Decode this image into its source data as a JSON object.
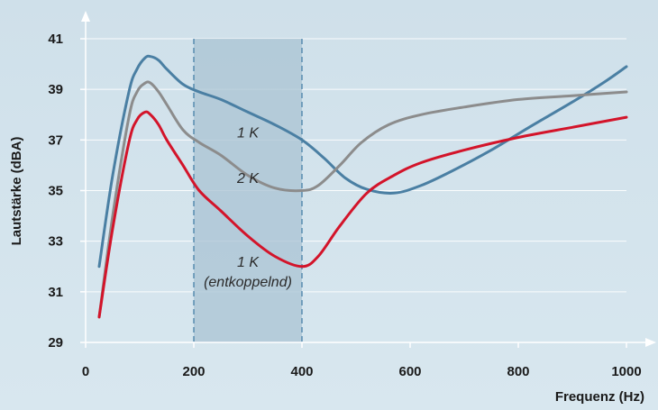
{
  "chart_data": {
    "type": "line",
    "xlabel": "Frequenz (Hz)",
    "ylabel": "Lautstärke (dBA)",
    "xlim": [
      0,
      1000
    ],
    "ylim": [
      29,
      41
    ],
    "xticks": [
      "0",
      "200",
      "400",
      "600",
      "800",
      "1000"
    ],
    "yticks": [
      "29",
      "31",
      "33",
      "35",
      "37",
      "39",
      "41"
    ],
    "grid": true,
    "legend": "none",
    "band": {
      "x0": 200,
      "x1": 400,
      "color": "#a9c3d3"
    },
    "annotations": [
      {
        "text": "1 K",
        "x": 300,
        "y": 37.1
      },
      {
        "text": "2 K",
        "x": 300,
        "y": 35.3
      },
      {
        "text": "1 K",
        "x": 300,
        "y": 32.0
      },
      {
        "text": "(entkoppelnd)",
        "x": 300,
        "y": 31.2
      }
    ],
    "series": [
      {
        "color": "#4a7fa3",
        "x": [
          25,
          50,
          80,
          95,
          110,
          120,
          135,
          150,
          180,
          210,
          250,
          300,
          350,
          400,
          440,
          480,
          520,
          570,
          620,
          680,
          750,
          820,
          900,
          960,
          1000
        ],
        "y": [
          32.0,
          35.6,
          38.9,
          39.8,
          40.25,
          40.3,
          40.15,
          39.8,
          39.2,
          38.9,
          38.6,
          38.1,
          37.6,
          37.0,
          36.3,
          35.5,
          35.05,
          34.9,
          35.2,
          35.8,
          36.6,
          37.5,
          38.5,
          39.3,
          39.9
        ]
      },
      {
        "color": "#8c8c8c",
        "x": [
          25,
          50,
          80,
          95,
          110,
          120,
          135,
          150,
          180,
          210,
          250,
          300,
          350,
          400,
          430,
          470,
          510,
          560,
          620,
          700,
          800,
          900,
          1000
        ],
        "y": [
          30.0,
          34.0,
          37.9,
          38.9,
          39.25,
          39.25,
          38.9,
          38.4,
          37.4,
          36.9,
          36.4,
          35.6,
          35.1,
          35.0,
          35.2,
          36.0,
          36.9,
          37.6,
          38.0,
          38.3,
          38.6,
          38.75,
          38.9
        ]
      },
      {
        "color": "#d3142a",
        "x": [
          25,
          50,
          80,
          95,
          110,
          120,
          135,
          150,
          180,
          210,
          250,
          300,
          350,
          400,
          430,
          470,
          520,
          570,
          620,
          700,
          800,
          900,
          1000
        ],
        "y": [
          30.0,
          33.5,
          36.9,
          37.8,
          38.1,
          38.0,
          37.6,
          37.0,
          36.0,
          35.0,
          34.2,
          33.2,
          32.4,
          32.0,
          32.4,
          33.6,
          34.9,
          35.6,
          36.1,
          36.6,
          37.1,
          37.5,
          37.9
        ]
      }
    ]
  }
}
